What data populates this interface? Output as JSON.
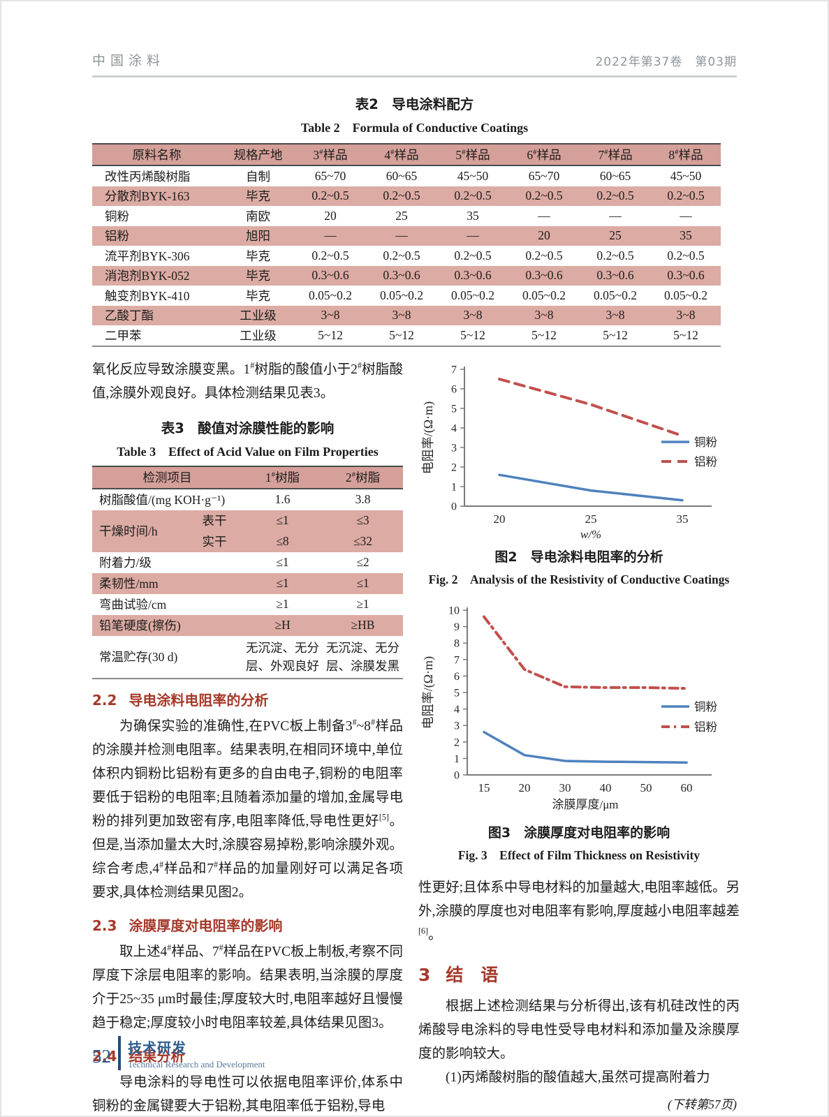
{
  "header": {
    "journal": "中国涂料",
    "issue": "2022年第37卷　第03期"
  },
  "table2": {
    "caption_cn": "表2　导电涂料配方",
    "caption_en": "Table 2　Formula of Conductive Coatings",
    "headers": [
      "原料名称",
      "规格产地",
      "3#样品",
      "4#样品",
      "5#样品",
      "6#样品",
      "7#样品",
      "8#样品"
    ],
    "rows": [
      [
        "改性丙烯酸树脂",
        "自制",
        "65~70",
        "60~65",
        "45~50",
        "65~70",
        "60~65",
        "45~50"
      ],
      [
        "分散剂BYK-163",
        "毕克",
        "0.2~0.5",
        "0.2~0.5",
        "0.2~0.5",
        "0.2~0.5",
        "0.2~0.5",
        "0.2~0.5"
      ],
      [
        "铜粉",
        "南欧",
        "20",
        "25",
        "35",
        "—",
        "—",
        "—"
      ],
      [
        "铝粉",
        "旭阳",
        "—",
        "—",
        "—",
        "20",
        "25",
        "35"
      ],
      [
        "流平剂BYK-306",
        "毕克",
        "0.2~0.5",
        "0.2~0.5",
        "0.2~0.5",
        "0.2~0.5",
        "0.2~0.5",
        "0.2~0.5"
      ],
      [
        "消泡剂BYK-052",
        "毕克",
        "0.3~0.6",
        "0.3~0.6",
        "0.3~0.6",
        "0.3~0.6",
        "0.3~0.6",
        "0.3~0.6"
      ],
      [
        "触变剂BYK-410",
        "毕克",
        "0.05~0.2",
        "0.05~0.2",
        "0.05~0.2",
        "0.05~0.2",
        "0.05~0.2",
        "0.05~0.2"
      ],
      [
        "乙酸丁酯",
        "工业级",
        "3~8",
        "3~8",
        "3~8",
        "3~8",
        "3~8",
        "3~8"
      ],
      [
        "二甲苯",
        "工业级",
        "5~12",
        "5~12",
        "5~12",
        "5~12",
        "5~12",
        "5~12"
      ]
    ]
  },
  "intro_para": "氧化反应导致涂膜变黑。1#树脂的酸值小于2#树脂酸值,涂膜外观良好。具体检测结果见表3。",
  "table3": {
    "caption_cn": "表3　酸值对涂膜性能的影响",
    "caption_en": "Table 3　Effect of Acid Value on Film Properties",
    "header": {
      "item": "检测项目",
      "resin1": "1#树脂",
      "resin2": "2#树脂"
    },
    "rows": [
      {
        "shade": false,
        "cells": [
          {
            "t": "树脂酸值/(mg KOH·g⁻¹)",
            "cs": 2,
            "al": "left"
          },
          {
            "t": "1.6"
          },
          {
            "t": "3.8"
          }
        ]
      },
      {
        "shade": true,
        "cells": [
          {
            "t": "干燥时间/h",
            "rs": 2,
            "al": "left"
          },
          {
            "t": "表干"
          },
          {
            "t": "≤1"
          },
          {
            "t": "≤3"
          }
        ]
      },
      {
        "shade": true,
        "cells": [
          {
            "t": "实干"
          },
          {
            "t": "≤8"
          },
          {
            "t": "≤32"
          }
        ]
      },
      {
        "shade": false,
        "cells": [
          {
            "t": "附着力/级",
            "cs": 2,
            "al": "left"
          },
          {
            "t": "≤1"
          },
          {
            "t": "≤2"
          }
        ]
      },
      {
        "shade": true,
        "cells": [
          {
            "t": "柔韧性/mm",
            "cs": 2,
            "al": "left"
          },
          {
            "t": "≤1"
          },
          {
            "t": "≤1"
          }
        ]
      },
      {
        "shade": false,
        "cells": [
          {
            "t": "弯曲试验/cm",
            "cs": 2,
            "al": "left"
          },
          {
            "t": "≥1"
          },
          {
            "t": "≥1"
          }
        ]
      },
      {
        "shade": true,
        "cells": [
          {
            "t": "铅笔硬度(擦伤)",
            "cs": 2,
            "al": "left"
          },
          {
            "t": "≥H"
          },
          {
            "t": "≥HB"
          }
        ]
      },
      {
        "shade": false,
        "cells": [
          {
            "t": "常温贮存(30 d)",
            "cs": 2,
            "al": "left"
          },
          {
            "t": "无沉淀、无分层、外观良好",
            "wrap": true
          },
          {
            "t": "无沉淀、无分层、涂膜发黑",
            "wrap": true
          }
        ]
      }
    ]
  },
  "sections": {
    "s22": {
      "num": "2.2",
      "title": "导电涂料电阻率的分析",
      "para": "为确保实验的准确性,在PVC板上制备3#~8#样品的涂膜并检测电阻率。结果表明,在相同环境中,单位体积内铜粉比铝粉有更多的自由电子,铜粉的电阻率要低于铝粉的电阻率;且随着添加量的增加,金属导电粉的排列更加致密有序,电阻率降低,导电性更好[5]。但是,当添加量太大时,涂膜容易掉粉,影响涂膜外观。综合考虑,4#样品和7#样品的加量刚好可以满足各项要求,具体检测结果见图2。"
    },
    "s23": {
      "num": "2.3",
      "title": "涂膜厚度对电阻率的影响",
      "para": "取上述4#样品、7#样品在PVC板上制板,考察不同厚度下涂层电阻率的影响。结果表明,当涂膜的厚度介于25~35 μm时最佳;厚度较大时,电阻率越好且慢慢趋于稳定;厚度较小时电阻率较差,具体结果见图3。"
    },
    "s24": {
      "num": "2.4",
      "title": "结果分析",
      "para": "导电涂料的导电性可以依据电阻率评价,体系中铜粉的金属键要大于铝粉,其电阻率低于铝粉,导电"
    },
    "right_para": "性更好;且体系中导电材料的加量越大,电阻率越低。另外,涂膜的厚度也对电阻率有影响,厚度越小电阻率越差[6]。",
    "s3": {
      "num": "3",
      "title": "结　语",
      "para1": "根据上述检测结果与分析得出,该有机硅改性的丙烯酸导电涂料的导电性受导电材料和添加量及涂膜厚度的影响较大。",
      "para2": "(1)丙烯酸树脂的酸值越大,虽然可提高附着力",
      "continuation_note": "(下转第57页)"
    }
  },
  "figures": {
    "fig2": {
      "caption_cn": "图2　导电涂料电阻率的分析",
      "caption_en": "Fig. 2　Analysis of the Resistivity of Conductive Coatings"
    },
    "fig3": {
      "caption_cn": "图3　涂膜厚度对电阻率的影响",
      "caption_en": "Fig. 3　Effect of Film Thickness on Resistivity"
    }
  },
  "footer": {
    "page_number": "52",
    "column_cn": "技术研发",
    "column_en": "Technical Research and Development"
  },
  "colors": {
    "accent_red": "#a5392a",
    "table_header_pink": "#d5a099",
    "table_row_pink": "#dcaba3",
    "copper_blue": "#4f81bd",
    "aluminum_red": "#c0504d",
    "footer_blue": "#2e5e8e"
  },
  "chart_data": [
    {
      "id": "fig2",
      "type": "line",
      "title": "导电涂料电阻率的分析",
      "categories": [
        20,
        25,
        35
      ],
      "xlabel": "w/%",
      "ylabel": "电阻率/(Ω·m)",
      "ylim": [
        0,
        7
      ],
      "ytick_step": 1,
      "grid": false,
      "legend_position": "right",
      "series": [
        {
          "name": "铜粉",
          "values": [
            1.6,
            0.8,
            0.3
          ],
          "color": "#4f81bd",
          "dash": "",
          "width": 3.5
        },
        {
          "name": "铝粉",
          "values": [
            6.5,
            5.2,
            3.6
          ],
          "color": "#c0504d",
          "dash": "14,9",
          "width": 4
        }
      ]
    },
    {
      "id": "fig3",
      "type": "line",
      "title": "涂膜厚度对电阻率的影响",
      "categories": [
        15,
        20,
        30,
        40,
        50,
        60
      ],
      "xlabel": "涂膜厚度/μm",
      "ylabel": "电阻率/(Ω·m)",
      "ylim": [
        0,
        10
      ],
      "ytick_step": 1,
      "grid": false,
      "legend_position": "right",
      "series": [
        {
          "name": "铜粉",
          "values": [
            2.6,
            1.2,
            0.85,
            0.8,
            0.78,
            0.75
          ],
          "color": "#4f81bd",
          "dash": "",
          "width": 3.5
        },
        {
          "name": "铝粉",
          "values": [
            9.6,
            6.4,
            5.35,
            5.3,
            5.3,
            5.25
          ],
          "color": "#c0504d",
          "dash": "12,6,3,7",
          "width": 4
        }
      ]
    }
  ]
}
